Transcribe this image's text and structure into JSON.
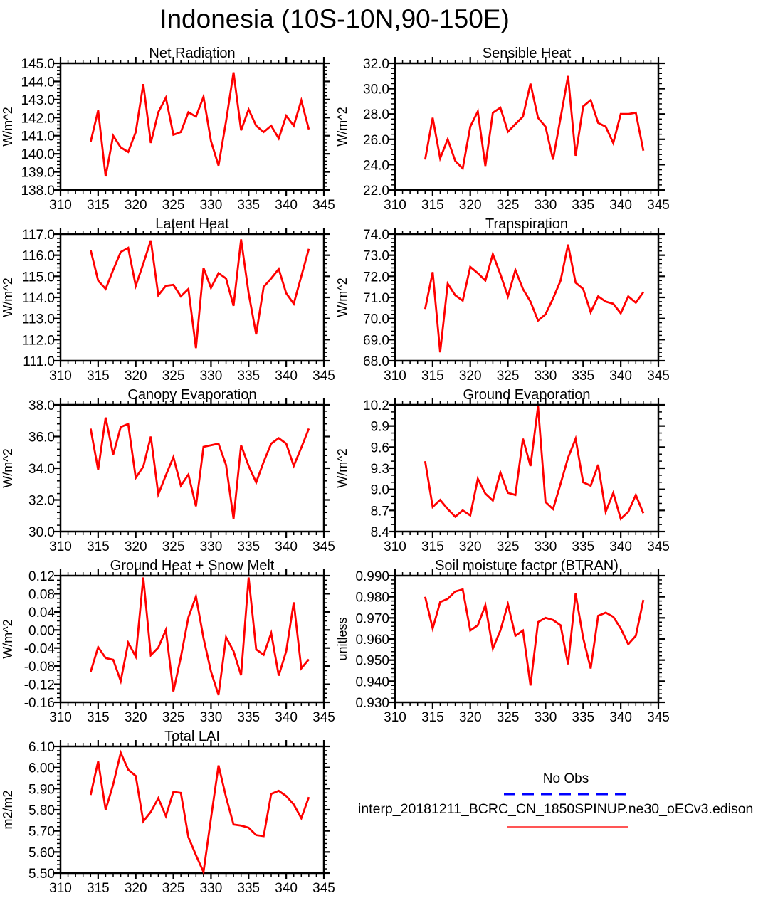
{
  "title": "Indonesia (10S-10N,90-150E)",
  "series_color": "#ff0000",
  "legend": {
    "no_obs_label": "No Obs",
    "no_obs_line_color": "#0000ff",
    "no_obs_line_style": "dashed",
    "model_label": "interp_20181211_BCRC_CN_1850SPINUP.ne30_oECv3.edison",
    "model_line_color": "#ff5555",
    "model_line_style": "solid"
  },
  "axis": {
    "x_min": 310,
    "x_max": 345,
    "x_step": 5,
    "x_minor_per_major": 4,
    "xticks": [
      310,
      315,
      320,
      325,
      330,
      335,
      340,
      345
    ]
  },
  "x_years": [
    314,
    315,
    316,
    317,
    318,
    319,
    320,
    321,
    322,
    323,
    324,
    325,
    326,
    327,
    328,
    329,
    330,
    331,
    332,
    333,
    334,
    335,
    336,
    337,
    338,
    339,
    340,
    341,
    342,
    343
  ],
  "chart_data": [
    {
      "type": "line",
      "slug": "net-radiation",
      "title": "Net Radiation",
      "ylabel": "W/m^2",
      "ylim": [
        138.0,
        145.0
      ],
      "ystep": 1.0,
      "ydecimals": 1,
      "yminor_per_major": 4,
      "values": [
        140.65,
        142.4,
        138.75,
        141.0,
        140.35,
        140.1,
        141.2,
        143.85,
        140.6,
        142.3,
        143.1,
        141.05,
        141.2,
        142.3,
        142.05,
        143.15,
        140.7,
        139.35,
        141.8,
        144.5,
        141.3,
        142.45,
        141.55,
        141.2,
        141.55,
        140.85,
        142.1,
        141.55,
        142.95,
        141.35
      ]
    },
    {
      "type": "line",
      "slug": "sensible-heat",
      "title": "Sensible Heat",
      "ylabel": "W/m^2",
      "ylim": [
        22.0,
        32.0
      ],
      "ystep": 2.0,
      "ydecimals": 1,
      "yminor_per_major": 4,
      "values": [
        24.4,
        27.7,
        24.5,
        26.0,
        24.3,
        23.7,
        27.0,
        28.2,
        23.9,
        28.1,
        28.5,
        26.6,
        27.2,
        27.8,
        30.4,
        27.7,
        27.0,
        24.4,
        27.7,
        31.0,
        24.7,
        28.6,
        29.1,
        27.3,
        27.0,
        25.7,
        28.0,
        28.0,
        28.1,
        25.1
      ]
    },
    {
      "type": "line",
      "slug": "latent-heat",
      "title": "Latent Heat",
      "ylabel": "W/m^2",
      "ylim": [
        111.0,
        117.0
      ],
      "ystep": 1.0,
      "ydecimals": 1,
      "yminor_per_major": 4,
      "values": [
        116.25,
        114.8,
        114.4,
        115.3,
        116.15,
        116.35,
        114.55,
        115.6,
        116.7,
        114.1,
        114.55,
        114.6,
        114.05,
        114.4,
        111.6,
        115.4,
        114.45,
        115.15,
        114.9,
        113.6,
        116.75,
        114.2,
        112.25,
        114.5,
        114.9,
        115.35,
        114.2,
        113.7,
        115.0,
        116.3
      ]
    },
    {
      "type": "line",
      "slug": "transpiration",
      "title": "Transpiration",
      "ylabel": "W/m^2",
      "ylim": [
        68.0,
        74.0
      ],
      "ystep": 1.0,
      "ydecimals": 1,
      "yminor_per_major": 4,
      "values": [
        70.45,
        72.2,
        68.4,
        71.65,
        71.1,
        70.85,
        72.45,
        72.15,
        71.8,
        73.05,
        72.1,
        71.05,
        72.3,
        71.4,
        70.8,
        69.9,
        70.2,
        70.95,
        71.8,
        73.5,
        71.7,
        71.4,
        70.3,
        71.05,
        70.8,
        70.7,
        70.25,
        71.05,
        70.75,
        71.25
      ]
    },
    {
      "type": "line",
      "slug": "canopy-evaporation",
      "title": "Canopy Evaporation",
      "ylabel": "W/m^2",
      "ylim": [
        30.0,
        38.0
      ],
      "ystep": 2.0,
      "ydecimals": 1,
      "yminor_per_major": 4,
      "values": [
        36.5,
        33.9,
        37.2,
        34.85,
        36.6,
        36.8,
        33.4,
        34.1,
        36.0,
        32.35,
        33.55,
        34.7,
        32.9,
        33.6,
        31.6,
        35.35,
        35.45,
        35.55,
        34.2,
        30.8,
        35.45,
        34.15,
        33.1,
        34.4,
        35.55,
        35.9,
        35.55,
        34.15,
        35.3,
        36.5
      ]
    },
    {
      "type": "line",
      "slug": "ground-evaporation",
      "title": "Ground Evaporation",
      "ylabel": "W/m^2",
      "ylim": [
        8.4,
        10.2
      ],
      "ystep": 0.3,
      "ydecimals": 1,
      "yminor_per_major": 2,
      "values": [
        9.4,
        8.75,
        8.85,
        8.72,
        8.61,
        8.7,
        8.63,
        9.15,
        8.94,
        8.84,
        9.24,
        8.95,
        8.92,
        9.72,
        9.33,
        10.18,
        8.82,
        8.72,
        9.08,
        9.45,
        9.72,
        9.1,
        9.05,
        9.35,
        8.68,
        8.95,
        8.58,
        8.68,
        8.92,
        8.66
      ]
    },
    {
      "type": "line",
      "slug": "ground-heat-snow-melt",
      "title": "Ground Heat + Snow Melt",
      "ylabel": "W/m^2",
      "ylim": [
        -0.16,
        0.12
      ],
      "ystep": 0.04,
      "ydecimals": 2,
      "yminor_per_major": 3,
      "values": [
        -0.093,
        -0.038,
        -0.062,
        -0.066,
        -0.113,
        -0.028,
        -0.059,
        0.116,
        -0.056,
        -0.039,
        0.0,
        -0.136,
        -0.06,
        0.028,
        0.074,
        -0.018,
        -0.092,
        -0.144,
        -0.016,
        -0.047,
        -0.1,
        0.116,
        -0.043,
        -0.055,
        -0.007,
        -0.101,
        -0.047,
        0.061,
        -0.085,
        -0.065
      ]
    },
    {
      "type": "line",
      "slug": "soil-moisture-btran",
      "title": "Soil moisture factor (BTRAN)",
      "ylabel": "unitless",
      "ylim": [
        0.93,
        0.99
      ],
      "ystep": 0.01,
      "ydecimals": 3,
      "yminor_per_major": 4,
      "values": [
        0.98,
        0.965,
        0.9775,
        0.979,
        0.9825,
        0.9835,
        0.964,
        0.9665,
        0.976,
        0.9555,
        0.964,
        0.9765,
        0.9615,
        0.964,
        0.938,
        0.968,
        0.97,
        0.969,
        0.9665,
        0.948,
        0.9815,
        0.9605,
        0.946,
        0.971,
        0.9725,
        0.9705,
        0.965,
        0.9575,
        0.9615,
        0.9785
      ]
    },
    {
      "type": "line",
      "slug": "total-lai",
      "title": "Total LAI",
      "ylabel": "m2/m2",
      "ylim": [
        5.5,
        6.1
      ],
      "ystep": 0.1,
      "ydecimals": 2,
      "yminor_per_major": 4,
      "values": [
        5.87,
        6.03,
        5.8,
        5.92,
        6.07,
        5.99,
        5.96,
        5.745,
        5.79,
        5.855,
        5.77,
        5.885,
        5.88,
        5.67,
        5.585,
        5.505,
        5.76,
        6.01,
        5.86,
        5.73,
        5.725,
        5.715,
        5.68,
        5.675,
        5.875,
        5.89,
        5.865,
        5.825,
        5.76,
        5.86
      ]
    }
  ]
}
